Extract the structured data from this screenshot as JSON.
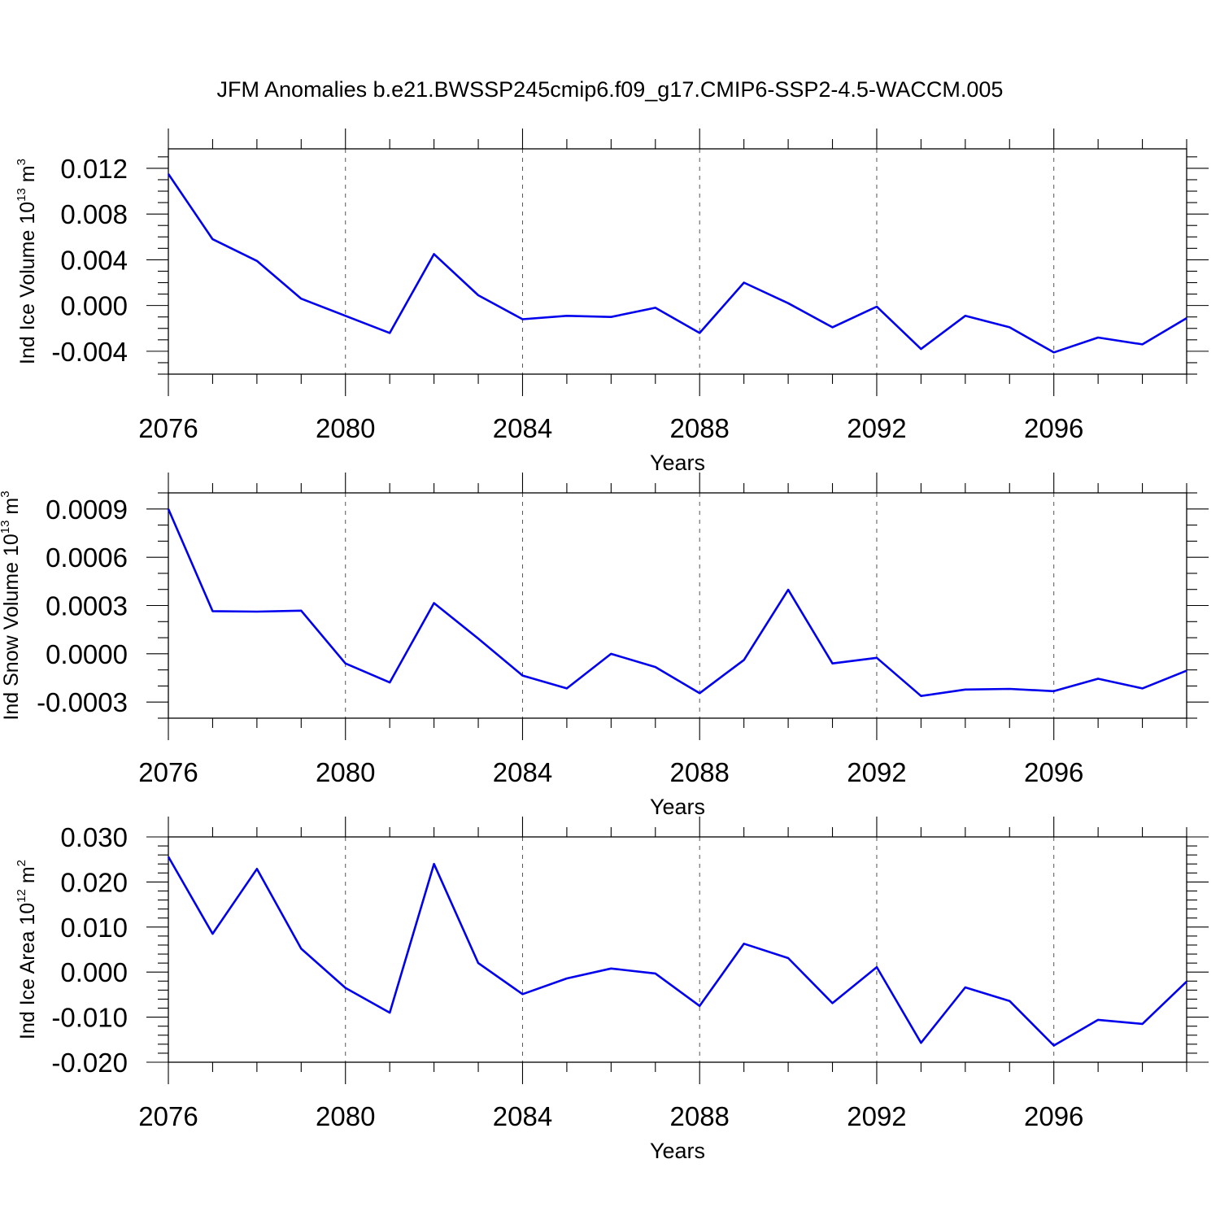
{
  "title": "JFM Anomalies b.e21.BWSSP245cmip6.f09_g17.CMIP6-SSP2-4.5-WACCM.005",
  "colors": {
    "line": "#0000ee",
    "grid": "#555555",
    "axis": "#000000"
  },
  "chart_data": [
    {
      "type": "line",
      "ylabel": {
        "text": "Ind Ice Volume 10",
        "sup1": "13",
        "unit": " m",
        "sup2": "3"
      },
      "xlabel": "Years",
      "xlim": [
        2076,
        2099
      ],
      "ylim": [
        -0.006,
        0.0137
      ],
      "x_major_ticks": [
        2076,
        2080,
        2084,
        2088,
        2092,
        2096
      ],
      "x_tick_labels": [
        "2076",
        "2080",
        "2084",
        "2088",
        "2092",
        "2096"
      ],
      "y_major_ticks": [
        0.012,
        0.008,
        0.004,
        0.0,
        -0.004
      ],
      "y_tick_labels": [
        "0.012",
        "0.008",
        "0.004",
        "0.000",
        "-0.004"
      ],
      "y_minor_step": 0.001,
      "grid": "x-major-dashed",
      "x": [
        2076,
        2077,
        2078,
        2079,
        2080,
        2081,
        2082,
        2083,
        2084,
        2085,
        2086,
        2087,
        2088,
        2089,
        2090,
        2091,
        2092,
        2093,
        2094,
        2095,
        2096,
        2097,
        2098,
        2099
      ],
      "values": [
        0.0115,
        0.0058,
        0.0039,
        0.0006,
        -0.0009,
        -0.0024,
        0.0045,
        0.0009,
        -0.0012,
        -0.0009,
        -0.001,
        -0.0002,
        -0.0024,
        0.002,
        0.0002,
        -0.0019,
        -0.0001,
        -0.0038,
        -0.0009,
        -0.0019,
        -0.0041,
        -0.0028,
        -0.0034,
        -0.0011
      ]
    },
    {
      "type": "line",
      "ylabel": {
        "text": "Ind Snow Volume 10",
        "sup1": "13",
        "unit": " m",
        "sup2": "3"
      },
      "xlabel": "Years",
      "xlim": [
        2076,
        2099
      ],
      "ylim": [
        -0.0004,
        0.001
      ],
      "x_major_ticks": [
        2076,
        2080,
        2084,
        2088,
        2092,
        2096
      ],
      "x_tick_labels": [
        "2076",
        "2080",
        "2084",
        "2088",
        "2092",
        "2096"
      ],
      "y_major_ticks": [
        0.0009,
        0.0006,
        0.0003,
        0.0,
        -0.0003
      ],
      "y_tick_labels": [
        "0.0009",
        "0.0006",
        "0.0003",
        "0.0000",
        "-0.0003"
      ],
      "y_minor_step": 0.0001,
      "grid": "x-major-dashed",
      "x": [
        2076,
        2077,
        2078,
        2079,
        2080,
        2081,
        2082,
        2083,
        2084,
        2085,
        2086,
        2087,
        2088,
        2089,
        2090,
        2091,
        2092,
        2093,
        2094,
        2095,
        2096,
        2097,
        2098,
        2099
      ],
      "values": [
        0.0009,
        0.000265,
        0.000262,
        0.000268,
        -6e-05,
        -0.000178,
        0.000315,
        9.5e-05,
        -0.000135,
        -0.000215,
        0.0,
        -8.2e-05,
        -0.000245,
        -3.8e-05,
        0.000398,
        -6e-05,
        -2.5e-05,
        -0.000262,
        -0.000222,
        -0.000218,
        -0.000232,
        -0.000155,
        -0.000215,
        -0.000105
      ]
    },
    {
      "type": "line",
      "ylabel": {
        "text": "Ind Ice Area 10",
        "sup1": "12",
        "unit": " m",
        "sup2": "2"
      },
      "xlabel": "Years",
      "xlim": [
        2076,
        2099
      ],
      "ylim": [
        -0.02,
        0.03
      ],
      "x_major_ticks": [
        2076,
        2080,
        2084,
        2088,
        2092,
        2096
      ],
      "x_tick_labels": [
        "2076",
        "2080",
        "2084",
        "2088",
        "2092",
        "2096"
      ],
      "y_major_ticks": [
        0.03,
        0.02,
        0.01,
        0.0,
        -0.01,
        -0.02
      ],
      "y_tick_labels": [
        "0.030",
        "0.020",
        "0.010",
        "0.000",
        "-0.010",
        "-0.020"
      ],
      "y_minor_step": 0.002,
      "grid": "x-major-dashed",
      "x": [
        2076,
        2077,
        2078,
        2079,
        2080,
        2081,
        2082,
        2083,
        2084,
        2085,
        2086,
        2087,
        2088,
        2089,
        2090,
        2091,
        2092,
        2093,
        2094,
        2095,
        2096,
        2097,
        2098,
        2099
      ],
      "values": [
        0.0256,
        0.0085,
        0.0229,
        0.0052,
        -0.0035,
        -0.009,
        0.024,
        0.002,
        -0.0049,
        -0.0014,
        0.0008,
        -0.0003,
        -0.0075,
        0.0063,
        0.0031,
        -0.0069,
        0.0011,
        -0.0157,
        -0.0034,
        -0.0064,
        -0.0163,
        -0.0106,
        -0.0115,
        -0.0021
      ]
    }
  ]
}
